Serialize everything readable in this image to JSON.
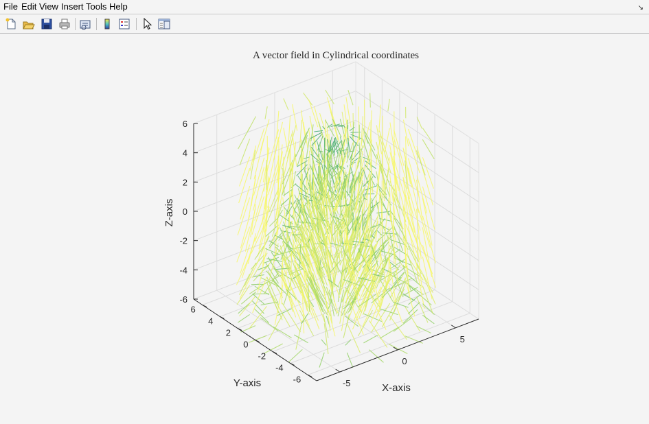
{
  "menu": {
    "items": [
      "File",
      "Edit",
      "View",
      "Insert",
      "Tools",
      "Help"
    ],
    "dock_icon": "dock-arrow-icon"
  },
  "toolbar": {
    "buttons": [
      "new-figure-icon",
      "open-file-icon",
      "save-icon",
      "print-icon",
      "link-plot-icon",
      "colorbar-icon",
      "legend-icon",
      "edit-plot-pointer-icon",
      "property-inspector-icon"
    ]
  },
  "colors": {
    "low": "#2e9e7a",
    "mid": "#8fcf6a",
    "high": "#f7f76a"
  },
  "chart_data": {
    "type": "quiver3",
    "title": "A vector field in Cylindrical coordinates",
    "xlabel": "X-axis",
    "ylabel": "Y-axis",
    "zlabel": "Z-axis",
    "xlim": [
      -7,
      7
    ],
    "ylim": [
      -7,
      7
    ],
    "zlim": [
      -6,
      6
    ],
    "x_ticks": [
      -5,
      0,
      5
    ],
    "y_ticks": [
      -6,
      -4,
      -2,
      0,
      2,
      4,
      6
    ],
    "z_ticks": [
      -6,
      -4,
      -2,
      0,
      2,
      4,
      6
    ],
    "grid": true,
    "colormap": "summer",
    "field": {
      "radii": [
        1,
        2,
        3,
        4,
        5,
        6
      ],
      "azimuth_samples": 24,
      "z_samples": [
        -6,
        -4,
        -2,
        0,
        2,
        4,
        6
      ]
    }
  }
}
